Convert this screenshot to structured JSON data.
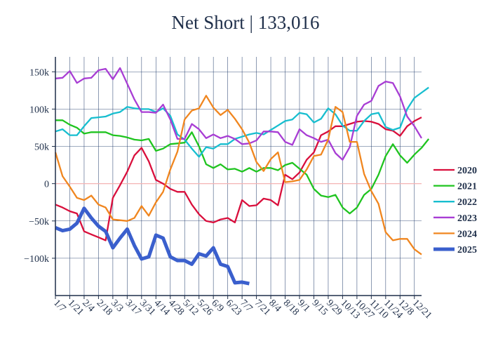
{
  "chart_data": {
    "type": "line",
    "title": "Net Short | 133,016",
    "xlabel": "",
    "ylabel": "",
    "ylim": [
      -150000,
      170000
    ],
    "yticks": [
      -100000,
      -50000,
      0,
      50000,
      100000,
      150000
    ],
    "ytick_labels": [
      "−100k",
      "−50k",
      "0",
      "50k",
      "100k",
      "150k"
    ],
    "x_tick_labels": [
      "1/7",
      "1/21",
      "2/4",
      "2/18",
      "3/3",
      "3/17",
      "3/31",
      "4/14",
      "4/28",
      "5/12",
      "5/26",
      "6/9",
      "6/23",
      "7/7",
      "7/21",
      "8/4",
      "8/18",
      "9/1",
      "9/15",
      "9/29",
      "10/13",
      "10/27",
      "11/10",
      "11/24",
      "12/8",
      "12/21"
    ],
    "grid": true,
    "zero_line": true,
    "legend_position": "right",
    "series": [
      {
        "name": "2020",
        "color": "#d90f3c",
        "width": 2.3,
        "values": [
          -28000,
          -32000,
          -37000,
          -40000,
          -64000,
          -68000,
          -72000,
          -76000,
          -19000,
          -2000,
          16000,
          38000,
          48000,
          30000,
          5000,
          0,
          -7000,
          -11000,
          -11000,
          -28000,
          -41000,
          -50000,
          -52000,
          -48000,
          -46000,
          -52000,
          -22000,
          -30000,
          -29000,
          -20000,
          -22000,
          -29000,
          12000,
          6000,
          15000,
          32000,
          42000,
          65000,
          70000,
          77000,
          77000,
          80000,
          83000,
          84000,
          83000,
          80000,
          73000,
          71000,
          64000,
          77000,
          84000,
          89000
        ]
      },
      {
        "name": "2021",
        "color": "#1fc41f",
        "width": 2.3,
        "values": [
          85000,
          85000,
          79000,
          75000,
          67000,
          69000,
          69000,
          69000,
          65000,
          64000,
          62000,
          59000,
          58000,
          60000,
          44000,
          47000,
          53000,
          54000,
          55000,
          69000,
          50000,
          26000,
          21000,
          26000,
          19000,
          20000,
          16000,
          21000,
          16000,
          21000,
          21000,
          18000,
          25000,
          28000,
          20000,
          12000,
          -7000,
          -16000,
          -18000,
          -15000,
          -32000,
          -40000,
          -32000,
          -15000,
          -7000,
          12000,
          37000,
          53000,
          38000,
          28000,
          39000,
          48000,
          60000
        ]
      },
      {
        "name": "2022",
        "color": "#17becf",
        "width": 2.3,
        "values": [
          70000,
          73000,
          65000,
          65000,
          77000,
          88000,
          89000,
          90000,
          94000,
          96000,
          103000,
          101000,
          100000,
          100000,
          96000,
          101000,
          91000,
          66000,
          59000,
          47000,
          36000,
          49000,
          47000,
          53000,
          53000,
          60000,
          63000,
          66000,
          68000,
          66000,
          72000,
          78000,
          84000,
          86000,
          95000,
          93000,
          82000,
          87000,
          101000,
          93000,
          78000,
          71000,
          71000,
          84000,
          93000,
          95000,
          76000,
          72000,
          75000,
          100000,
          115000,
          122000,
          129000
        ]
      },
      {
        "name": "2023",
        "color": "#a83dd4",
        "width": 2.3,
        "values": [
          141000,
          142000,
          151000,
          135000,
          141000,
          142000,
          152000,
          154000,
          140000,
          155000,
          134000,
          113000,
          96000,
          96000,
          95000,
          106000,
          86000,
          60000,
          60000,
          80000,
          73000,
          61000,
          66000,
          61000,
          64000,
          60000,
          53000,
          54000,
          58000,
          70000,
          70000,
          69000,
          56000,
          52000,
          73000,
          65000,
          61000,
          56000,
          59000,
          41000,
          32000,
          49000,
          91000,
          106000,
          111000,
          131000,
          137000,
          135000,
          117000,
          90000,
          77000,
          61000
        ]
      },
      {
        "name": "2024",
        "color": "#f0861f",
        "width": 2.3,
        "values": [
          42000,
          10000,
          -4000,
          -19000,
          -22000,
          -16000,
          -28000,
          -32000,
          -48000,
          -49000,
          -50000,
          -46000,
          -30000,
          -43000,
          -25000,
          -11000,
          19000,
          43000,
          86000,
          98000,
          101000,
          118000,
          102000,
          92000,
          99000,
          87000,
          73000,
          55000,
          29000,
          17000,
          33000,
          42000,
          2000,
          3000,
          5000,
          19000,
          37000,
          39000,
          59000,
          103000,
          96000,
          56000,
          56000,
          13000,
          -10000,
          -27000,
          -65000,
          -76000,
          -74000,
          -74000,
          -88000,
          -95000
        ]
      },
      {
        "name": "2025",
        "color": "#3a5fcd",
        "width": 5,
        "values": [
          -59000,
          -63000,
          -61000,
          -53000,
          -33000,
          -46000,
          -57000,
          -64000,
          -86000,
          -73000,
          -61000,
          -83000,
          -101000,
          -98000,
          -69000,
          -73000,
          -98000,
          -103000,
          -103000,
          -108000,
          -94000,
          -97000,
          -86000,
          -108000,
          -111000,
          -133000,
          -132000,
          -134000
        ]
      }
    ]
  }
}
